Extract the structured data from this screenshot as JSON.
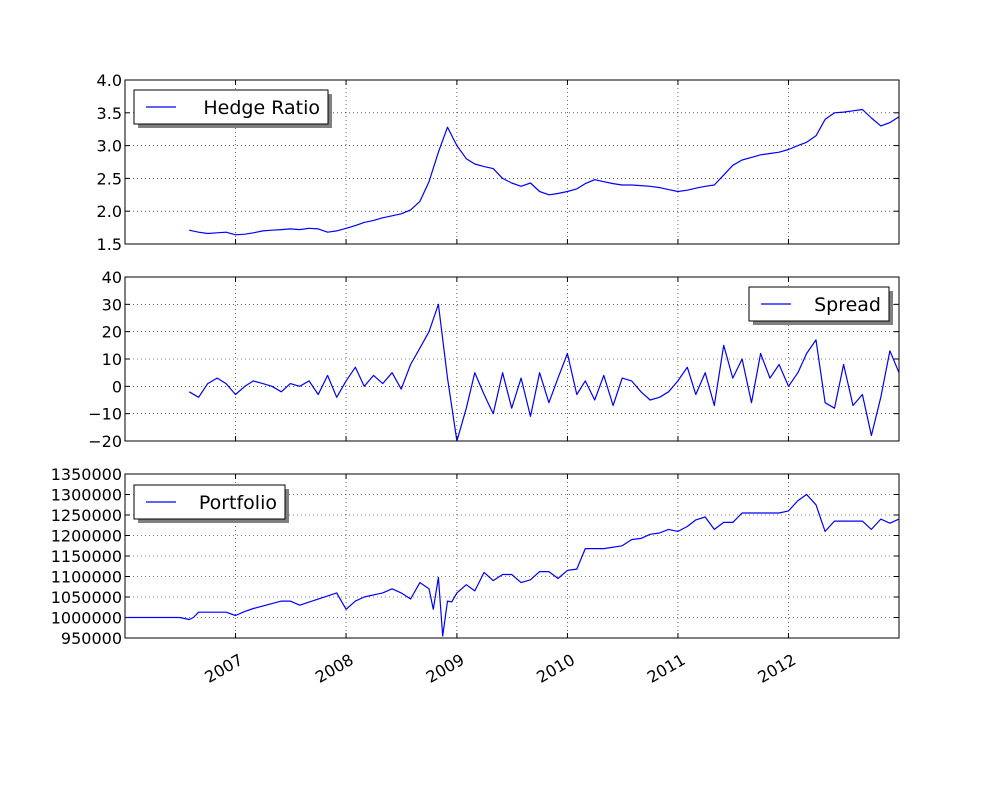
{
  "chart_data": [
    {
      "type": "line",
      "title": "",
      "xlabel": "",
      "ylabel": "",
      "xlim": [
        "2006-01-01",
        "2012-12-31"
      ],
      "ylim": [
        1.5,
        4.0
      ],
      "yticks": [
        "1.5",
        "2.0",
        "2.5",
        "3.0",
        "3.5",
        "4.0"
      ],
      "grid": true,
      "legend": "upper left",
      "series": [
        {
          "name": "Hedge Ratio",
          "color": "#0000ff",
          "x": [
            "2006-08-01",
            "2006-09-01",
            "2006-10-01",
            "2006-11-01",
            "2006-12-01",
            "2007-01-01",
            "2007-02-01",
            "2007-03-01",
            "2007-04-01",
            "2007-05-01",
            "2007-06-01",
            "2007-07-01",
            "2007-08-01",
            "2007-09-01",
            "2007-10-01",
            "2007-11-01",
            "2007-12-01",
            "2008-01-01",
            "2008-02-01",
            "2008-03-01",
            "2008-04-01",
            "2008-05-01",
            "2008-06-01",
            "2008-07-01",
            "2008-08-01",
            "2008-09-01",
            "2008-10-01",
            "2008-11-01",
            "2008-12-01",
            "2009-01-01",
            "2009-02-01",
            "2009-03-01",
            "2009-04-01",
            "2009-05-01",
            "2009-06-01",
            "2009-07-01",
            "2009-08-01",
            "2009-09-01",
            "2009-10-01",
            "2009-11-01",
            "2009-12-01",
            "2010-01-01",
            "2010-02-01",
            "2010-03-01",
            "2010-04-01",
            "2010-05-01",
            "2010-06-01",
            "2010-07-01",
            "2010-08-01",
            "2010-09-01",
            "2010-10-01",
            "2010-11-01",
            "2010-12-01",
            "2011-01-01",
            "2011-02-01",
            "2011-03-01",
            "2011-04-01",
            "2011-05-01",
            "2011-06-01",
            "2011-07-01",
            "2011-08-01",
            "2011-09-01",
            "2011-10-01",
            "2011-11-01",
            "2011-12-01",
            "2012-01-01",
            "2012-02-01",
            "2012-03-01",
            "2012-04-01",
            "2012-05-01",
            "2012-06-01",
            "2012-07-01",
            "2012-08-01",
            "2012-09-01",
            "2012-10-01",
            "2012-11-01",
            "2012-12-01",
            "2012-12-31"
          ],
          "values": [
            1.71,
            1.68,
            1.66,
            1.67,
            1.68,
            1.64,
            1.65,
            1.67,
            1.7,
            1.71,
            1.72,
            1.73,
            1.72,
            1.74,
            1.73,
            1.68,
            1.7,
            1.74,
            1.78,
            1.83,
            1.86,
            1.9,
            1.93,
            1.96,
            2.02,
            2.15,
            2.45,
            2.9,
            3.28,
            3.0,
            2.8,
            2.72,
            2.68,
            2.65,
            2.5,
            2.43,
            2.38,
            2.43,
            2.3,
            2.25,
            2.27,
            2.3,
            2.34,
            2.42,
            2.48,
            2.45,
            2.42,
            2.4,
            2.4,
            2.39,
            2.38,
            2.36,
            2.33,
            2.3,
            2.32,
            2.35,
            2.38,
            2.4,
            2.55,
            2.7,
            2.78,
            2.82,
            2.86,
            2.88,
            2.9,
            2.94,
            3.0,
            3.05,
            3.15,
            3.4,
            3.5,
            3.51,
            3.53,
            3.55,
            3.42,
            3.3,
            3.35,
            3.44
          ]
        }
      ]
    },
    {
      "type": "line",
      "title": "",
      "xlabel": "",
      "ylabel": "",
      "xlim": [
        "2006-01-01",
        "2012-12-31"
      ],
      "ylim": [
        -20,
        40
      ],
      "yticks": [
        "−20",
        "−10",
        "0",
        "10",
        "20",
        "30",
        "40"
      ],
      "grid": true,
      "legend": "upper right",
      "series": [
        {
          "name": "Spread",
          "color": "#0000ff",
          "x": [
            "2006-08-01",
            "2006-09-01",
            "2006-10-01",
            "2006-11-01",
            "2006-12-01",
            "2007-01-01",
            "2007-02-01",
            "2007-03-01",
            "2007-04-01",
            "2007-05-01",
            "2007-06-01",
            "2007-07-01",
            "2007-08-01",
            "2007-09-01",
            "2007-10-01",
            "2007-11-01",
            "2007-12-01",
            "2008-01-01",
            "2008-02-01",
            "2008-03-01",
            "2008-04-01",
            "2008-05-01",
            "2008-06-01",
            "2008-07-01",
            "2008-08-01",
            "2008-09-01",
            "2008-10-01",
            "2008-11-01",
            "2008-12-01",
            "2009-01-01",
            "2009-02-01",
            "2009-03-01",
            "2009-04-01",
            "2009-05-01",
            "2009-06-01",
            "2009-07-01",
            "2009-08-01",
            "2009-09-01",
            "2009-10-01",
            "2009-11-01",
            "2009-12-01",
            "2010-01-01",
            "2010-02-01",
            "2010-03-01",
            "2010-04-01",
            "2010-05-01",
            "2010-06-01",
            "2010-07-01",
            "2010-08-01",
            "2010-09-01",
            "2010-10-01",
            "2010-11-01",
            "2010-12-01",
            "2011-01-01",
            "2011-02-01",
            "2011-03-01",
            "2011-04-01",
            "2011-05-01",
            "2011-06-01",
            "2011-07-01",
            "2011-08-01",
            "2011-09-01",
            "2011-10-01",
            "2011-11-01",
            "2011-12-01",
            "2012-01-01",
            "2012-02-01",
            "2012-03-01",
            "2012-04-01",
            "2012-05-01",
            "2012-06-01",
            "2012-07-01",
            "2012-08-01",
            "2012-09-01",
            "2012-10-01",
            "2012-11-01",
            "2012-12-01",
            "2012-12-31"
          ],
          "values": [
            -2,
            -4,
            1,
            3,
            1,
            -3,
            0,
            2,
            1,
            0,
            -2,
            1,
            0,
            2,
            -3,
            4,
            -4,
            2,
            7,
            0,
            4,
            1,
            5,
            -1,
            8,
            14,
            20,
            30,
            3,
            -20,
            -8,
            5,
            -3,
            -10,
            5,
            -8,
            3,
            -11,
            5,
            -6,
            3,
            12,
            -3,
            2,
            -5,
            4,
            -7,
            3,
            2,
            -2,
            -5,
            -4,
            -2,
            2,
            7,
            -3,
            5,
            -7,
            15,
            3,
            10,
            -6,
            12,
            3,
            8,
            0,
            5,
            12,
            17,
            -6,
            -8,
            8,
            -7,
            -3,
            -18,
            -4,
            13,
            5
          ]
        }
      ]
    },
    {
      "type": "line",
      "title": "",
      "xlabel": "",
      "ylabel": "",
      "xlim": [
        "2006-01-01",
        "2012-12-31"
      ],
      "ylim": [
        950000,
        1350000
      ],
      "yticks": [
        "950000",
        "1000000",
        "1050000",
        "1100000",
        "1150000",
        "1200000",
        "1250000",
        "1300000",
        "1350000"
      ],
      "xticks": [
        "2007",
        "2008",
        "2009",
        "2010",
        "2011",
        "2012"
      ],
      "grid": true,
      "legend": "upper left",
      "series": [
        {
          "name": "Portfolio",
          "color": "#0000ff",
          "x": [
            "2006-01-01",
            "2006-07-01",
            "2006-08-01",
            "2006-08-15",
            "2006-09-01",
            "2006-12-01",
            "2007-01-01",
            "2007-02-01",
            "2007-03-01",
            "2007-06-01",
            "2007-07-01",
            "2007-08-01",
            "2007-12-01",
            "2008-01-01",
            "2008-02-01",
            "2008-03-01",
            "2008-05-01",
            "2008-06-01",
            "2008-07-01",
            "2008-08-01",
            "2008-09-01",
            "2008-10-01",
            "2008-10-15",
            "2008-11-01",
            "2008-11-15",
            "2008-12-01",
            "2008-12-15",
            "2009-01-01",
            "2009-02-01",
            "2009-03-01",
            "2009-04-01",
            "2009-05-01",
            "2009-06-01",
            "2009-07-01",
            "2009-08-01",
            "2009-09-01",
            "2009-10-01",
            "2009-11-01",
            "2009-12-01",
            "2010-01-01",
            "2010-02-01",
            "2010-03-01",
            "2010-04-01",
            "2010-05-01",
            "2010-07-01",
            "2010-08-01",
            "2010-09-01",
            "2010-10-01",
            "2010-11-01",
            "2010-12-01",
            "2011-01-01",
            "2011-02-01",
            "2011-03-01",
            "2011-04-01",
            "2011-05-01",
            "2011-06-01",
            "2011-07-01",
            "2011-08-01",
            "2011-10-01",
            "2011-12-01",
            "2012-01-01",
            "2012-02-01",
            "2012-03-01",
            "2012-04-01",
            "2012-05-01",
            "2012-06-01",
            "2012-08-01",
            "2012-09-01",
            "2012-10-01",
            "2012-11-01",
            "2012-12-01",
            "2012-12-31"
          ],
          "values": [
            1000000,
            1000000,
            995000,
            1000000,
            1013000,
            1013000,
            1005000,
            1015000,
            1022000,
            1040000,
            1040000,
            1030000,
            1060000,
            1020000,
            1040000,
            1050000,
            1060000,
            1070000,
            1060000,
            1045000,
            1085000,
            1070000,
            1020000,
            1098000,
            955000,
            1040000,
            1038000,
            1060000,
            1080000,
            1065000,
            1110000,
            1090000,
            1105000,
            1105000,
            1085000,
            1092000,
            1112000,
            1112000,
            1095000,
            1115000,
            1118000,
            1168000,
            1168000,
            1168000,
            1175000,
            1190000,
            1193000,
            1203000,
            1206000,
            1215000,
            1210000,
            1222000,
            1238000,
            1245000,
            1215000,
            1232000,
            1232000,
            1255000,
            1255000,
            1255000,
            1260000,
            1285000,
            1300000,
            1275000,
            1210000,
            1235000,
            1235000,
            1235000,
            1215000,
            1240000,
            1230000,
            1240000
          ]
        }
      ]
    }
  ]
}
